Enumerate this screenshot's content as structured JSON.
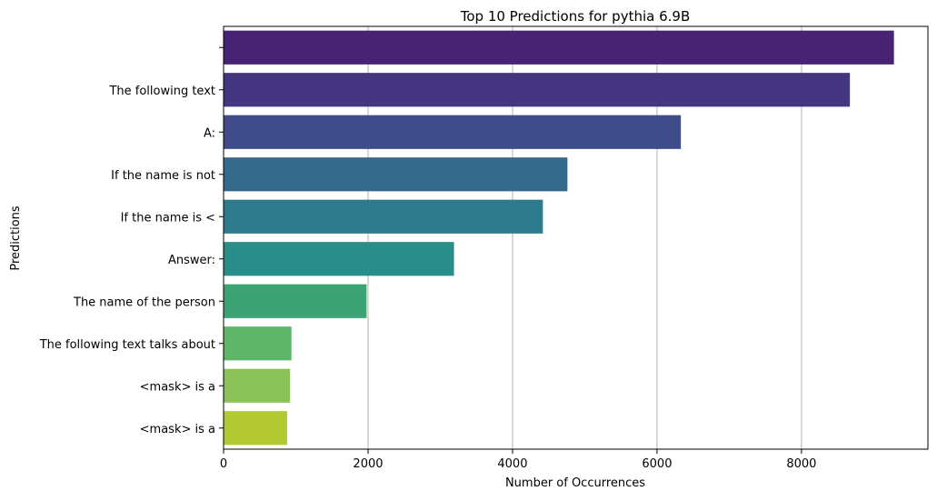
{
  "chart_data": {
    "type": "bar",
    "orientation": "horizontal",
    "title": "Top 10 Predictions for pythia 6.9B",
    "xlabel": "Number of Occurrences",
    "ylabel": "Predictions",
    "xlim": [
      0,
      9750
    ],
    "xticks": [
      0,
      2000,
      4000,
      6000,
      8000
    ],
    "xtick_labels": [
      "0",
      "2000",
      "4000",
      "6000",
      "8000"
    ],
    "grid": "x-axis only",
    "categories": [
      "",
      "The following text",
      "A:",
      "If the name is not",
      "If the name is <",
      "Answer:",
      "The name of the person",
      "The following text talks about",
      "<mask> is a",
      "<mask> is a"
    ],
    "values": [
      9280,
      8670,
      6330,
      4760,
      4420,
      3190,
      1980,
      940,
      920,
      880
    ],
    "colors": [
      "#482374",
      "#453681",
      "#3e4c8a",
      "#366a8c",
      "#2f7b8e",
      "#2a8d89",
      "#3da374",
      "#5fb569",
      "#8ac258",
      "#b2c934"
    ]
  }
}
